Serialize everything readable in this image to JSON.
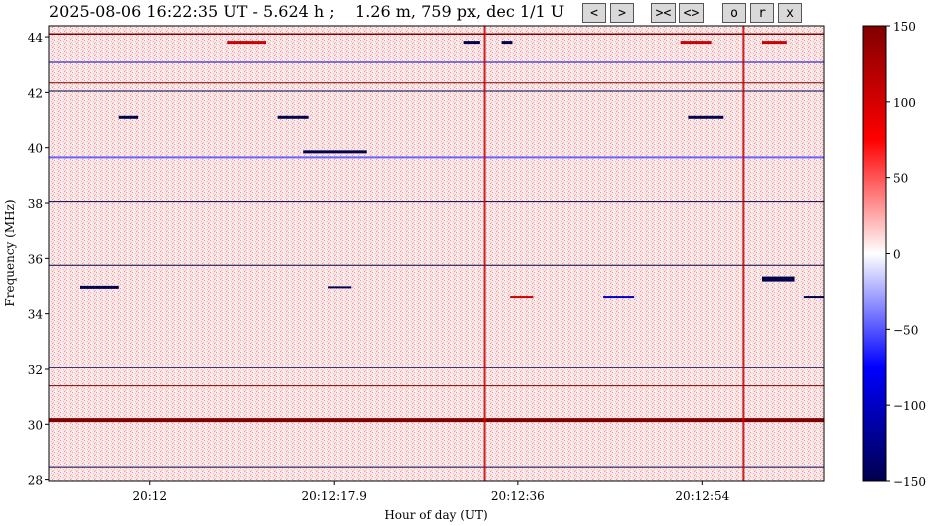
{
  "header": {
    "title": "2025-08-06 16:22:35 UT - 5.624 h ;    1.26 m, 759 px, dec 1/1 U"
  },
  "toolbar": {
    "buttons": [
      {
        "name": "prev-button",
        "label": "<"
      },
      {
        "name": "next-button",
        "label": ">"
      },
      {
        "name": "zoom-in-button",
        "label": "><"
      },
      {
        "name": "zoom-out-button",
        "label": "<>"
      },
      {
        "name": "orig-button",
        "label": "o"
      },
      {
        "name": "reset-button",
        "label": "r"
      },
      {
        "name": "close-button",
        "label": "x"
      }
    ]
  },
  "chart_data": {
    "type": "heatmap",
    "xlabel": "Hour of day (UT)",
    "ylabel": "Frequency (MHz)",
    "ylim": [
      27.95,
      44.4
    ],
    "x_ticks": [
      {
        "label": "20:12",
        "pos": 0.13
      },
      {
        "label": "20:12:17.9",
        "pos": 0.368
      },
      {
        "label": "20:12:36",
        "pos": 0.605
      },
      {
        "label": "20:12:54",
        "pos": 0.843
      }
    ],
    "y_ticks": [
      28,
      30,
      32,
      34,
      36,
      38,
      40,
      42,
      44
    ],
    "colorbar": {
      "range": [
        -150,
        150
      ],
      "ticks": [
        -150,
        -100,
        -50,
        0,
        50,
        100,
        150
      ],
      "colormap": "seismic",
      "colors": [
        "#00004d",
        "#0000ff",
        "#ffffff",
        "#ff0000",
        "#800000"
      ]
    },
    "horizontal_lines": [
      {
        "freq": 44.1,
        "color": "#800000",
        "width": 1.5
      },
      {
        "freq": 43.1,
        "color": "#0000cc",
        "width": 1
      },
      {
        "freq": 42.35,
        "color": "#800000",
        "width": 1
      },
      {
        "freq": 42.05,
        "color": "#00004d",
        "width": 1
      },
      {
        "freq": 39.65,
        "color": "#6666ff",
        "width": 2
      },
      {
        "freq": 38.05,
        "color": "#00004d",
        "width": 1
      },
      {
        "freq": 35.75,
        "color": "#00004d",
        "width": 1
      },
      {
        "freq": 32.05,
        "color": "#00004d",
        "width": 0.8
      },
      {
        "freq": 31.4,
        "color": "#800000",
        "width": 1
      },
      {
        "freq": 30.15,
        "color": "#800000",
        "width": 4
      },
      {
        "freq": 28.45,
        "color": "#00004d",
        "width": 1
      }
    ],
    "vertical_lines": [
      {
        "pos": 0.562,
        "color": "#cc0000"
      },
      {
        "pos": 0.896,
        "color": "#cc0000"
      }
    ],
    "segments": [
      {
        "freq": 43.8,
        "x0": 0.23,
        "x1": 0.28,
        "color": "#cc0000",
        "h": 3
      },
      {
        "freq": 43.8,
        "x0": 0.535,
        "x1": 0.556,
        "color": "#00004d",
        "h": 3
      },
      {
        "freq": 43.8,
        "x0": 0.584,
        "x1": 0.598,
        "color": "#00004d",
        "h": 3
      },
      {
        "freq": 43.8,
        "x0": 0.815,
        "x1": 0.855,
        "color": "#cc0000",
        "h": 3
      },
      {
        "freq": 43.8,
        "x0": 0.92,
        "x1": 0.952,
        "color": "#cc0000",
        "h": 3
      },
      {
        "freq": 41.1,
        "x0": 0.09,
        "x1": 0.115,
        "color": "#00004d",
        "h": 3
      },
      {
        "freq": 41.1,
        "x0": 0.295,
        "x1": 0.335,
        "color": "#00004d",
        "h": 3
      },
      {
        "freq": 41.1,
        "x0": 0.825,
        "x1": 0.87,
        "color": "#00004d",
        "h": 3
      },
      {
        "freq": 39.85,
        "x0": 0.328,
        "x1": 0.41,
        "color": "#00004d",
        "h": 3
      },
      {
        "freq": 35.25,
        "x0": 0.92,
        "x1": 0.962,
        "color": "#00004d",
        "h": 5
      },
      {
        "freq": 34.95,
        "x0": 0.04,
        "x1": 0.09,
        "color": "#00004d",
        "h": 3
      },
      {
        "freq": 34.95,
        "x0": 0.36,
        "x1": 0.39,
        "color": "#00004d",
        "h": 2
      },
      {
        "freq": 34.6,
        "x0": 0.595,
        "x1": 0.625,
        "color": "#cc0000",
        "h": 2
      },
      {
        "freq": 34.6,
        "x0": 0.715,
        "x1": 0.755,
        "color": "#0000cc",
        "h": 2
      },
      {
        "freq": 34.6,
        "x0": 0.974,
        "x1": 1.0,
        "color": "#00004d",
        "h": 2
      }
    ]
  }
}
